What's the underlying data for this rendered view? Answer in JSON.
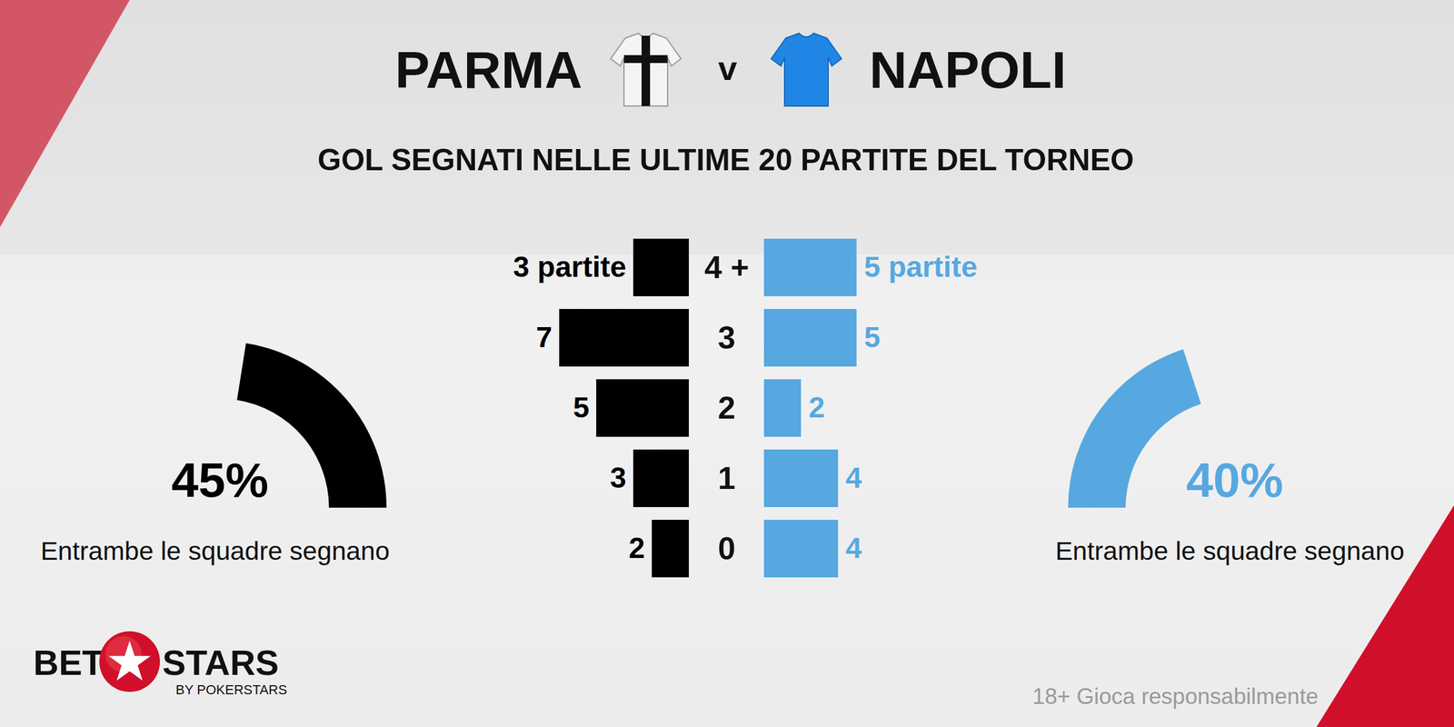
{
  "chart_data": [
    {
      "type": "bar",
      "orientation": "horizontal",
      "title": "GOL SEGNATI NELLE ULTIME 20 PARTITE DEL TORNEO",
      "categories": [
        "4 +",
        "3",
        "2",
        "1",
        "0"
      ],
      "series": [
        {
          "name": "PARMA",
          "color": "#000000",
          "values": [
            3,
            7,
            5,
            3,
            2
          ],
          "value_labels": [
            "3 partite",
            "7",
            "5",
            "3",
            "2"
          ]
        },
        {
          "name": "NAPOLI",
          "color": "#57a8e0",
          "values": [
            5,
            5,
            2,
            4,
            4
          ],
          "value_labels": [
            "5 partite",
            "5",
            "2",
            "4",
            "4"
          ]
        }
      ],
      "xlim": [
        0,
        7
      ],
      "data_labels": true,
      "tick_labels": "y"
    },
    {
      "type": "gauge",
      "title": "Entrambe le squadre segnano",
      "values": [
        45
      ],
      "value_labels": [
        "45%"
      ],
      "color": "#000000",
      "ylim": [
        0,
        100
      ]
    },
    {
      "type": "gauge",
      "title": "Entrambe le squadre segnano",
      "values": [
        40
      ],
      "value_labels": [
        "40%"
      ],
      "color": "#57a8e0",
      "ylim": [
        0,
        100
      ]
    }
  ],
  "header": {
    "separator": "v"
  },
  "footer": {
    "brand_left": "BET",
    "brand_right": "STARS",
    "brand_sub": "BY POKERSTARS",
    "disclaimer": "18+ Gioca responsabilmente"
  }
}
